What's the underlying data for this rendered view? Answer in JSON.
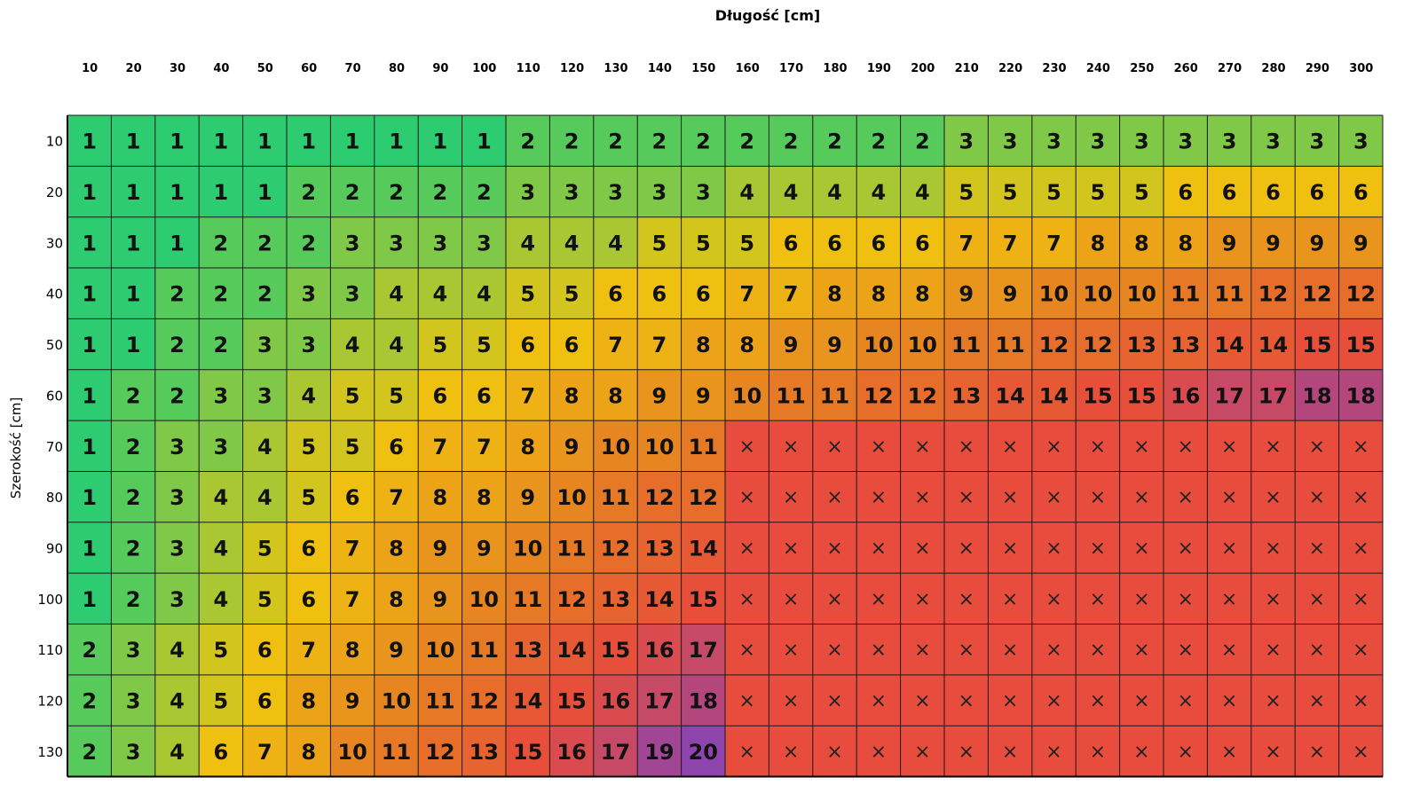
{
  "chart_data": {
    "type": "heatmap",
    "xlabel": "Długość [cm]",
    "ylabel": "Szerokość [cm]",
    "x": [
      "10",
      "20",
      "30",
      "40",
      "50",
      "60",
      "70",
      "80",
      "90",
      "100",
      "110",
      "120",
      "130",
      "140",
      "150",
      "160",
      "170",
      "180",
      "190",
      "200",
      "210",
      "220",
      "230",
      "240",
      "250",
      "260",
      "270",
      "280",
      "290",
      "300"
    ],
    "y": [
      "10",
      "20",
      "30",
      "40",
      "50",
      "60",
      "70",
      "80",
      "90",
      "100",
      "110",
      "120",
      "130"
    ],
    "unavailable_symbol": "×",
    "values": [
      [
        1,
        1,
        1,
        1,
        1,
        1,
        1,
        1,
        1,
        1,
        2,
        2,
        2,
        2,
        2,
        2,
        2,
        2,
        2,
        2,
        3,
        3,
        3,
        3,
        3,
        3,
        3,
        3,
        3,
        3
      ],
      [
        1,
        1,
        1,
        1,
        1,
        2,
        2,
        2,
        2,
        2,
        3,
        3,
        3,
        3,
        3,
        4,
        4,
        4,
        4,
        4,
        5,
        5,
        5,
        5,
        5,
        6,
        6,
        6,
        6,
        6
      ],
      [
        1,
        1,
        1,
        2,
        2,
        2,
        3,
        3,
        3,
        3,
        4,
        4,
        4,
        5,
        5,
        5,
        6,
        6,
        6,
        6,
        7,
        7,
        7,
        8,
        8,
        8,
        9,
        9,
        9,
        9
      ],
      [
        1,
        1,
        2,
        2,
        2,
        3,
        3,
        4,
        4,
        4,
        5,
        5,
        6,
        6,
        6,
        7,
        7,
        8,
        8,
        8,
        9,
        9,
        10,
        10,
        10,
        11,
        11,
        12,
        12,
        12
      ],
      [
        1,
        1,
        2,
        2,
        3,
        3,
        4,
        4,
        5,
        5,
        6,
        6,
        7,
        7,
        8,
        8,
        9,
        9,
        10,
        10,
        11,
        11,
        12,
        12,
        13,
        13,
        14,
        14,
        15,
        15
      ],
      [
        1,
        2,
        2,
        3,
        3,
        4,
        5,
        5,
        6,
        6,
        7,
        8,
        8,
        9,
        9,
        10,
        11,
        11,
        12,
        12,
        13,
        14,
        14,
        15,
        15,
        16,
        17,
        17,
        18,
        18
      ],
      [
        1,
        2,
        3,
        3,
        4,
        5,
        5,
        6,
        7,
        7,
        8,
        9,
        10,
        10,
        11,
        null,
        null,
        null,
        null,
        null,
        null,
        null,
        null,
        null,
        null,
        null,
        null,
        null,
        null,
        null
      ],
      [
        1,
        2,
        3,
        4,
        4,
        5,
        6,
        7,
        8,
        8,
        9,
        10,
        11,
        12,
        12,
        null,
        null,
        null,
        null,
        null,
        null,
        null,
        null,
        null,
        null,
        null,
        null,
        null,
        null,
        null
      ],
      [
        1,
        2,
        3,
        4,
        5,
        6,
        7,
        8,
        9,
        9,
        10,
        11,
        12,
        13,
        14,
        null,
        null,
        null,
        null,
        null,
        null,
        null,
        null,
        null,
        null,
        null,
        null,
        null,
        null,
        null
      ],
      [
        1,
        2,
        3,
        4,
        5,
        6,
        7,
        8,
        9,
        10,
        11,
        12,
        13,
        14,
        15,
        null,
        null,
        null,
        null,
        null,
        null,
        null,
        null,
        null,
        null,
        null,
        null,
        null,
        null,
        null
      ],
      [
        2,
        3,
        4,
        5,
        6,
        7,
        8,
        9,
        10,
        11,
        13,
        14,
        15,
        16,
        17,
        null,
        null,
        null,
        null,
        null,
        null,
        null,
        null,
        null,
        null,
        null,
        null,
        null,
        null,
        null
      ],
      [
        2,
        3,
        4,
        5,
        6,
        8,
        9,
        10,
        11,
        12,
        14,
        15,
        16,
        17,
        18,
        null,
        null,
        null,
        null,
        null,
        null,
        null,
        null,
        null,
        null,
        null,
        null,
        null,
        null,
        null
      ],
      [
        2,
        3,
        4,
        6,
        7,
        8,
        10,
        11,
        12,
        13,
        15,
        16,
        17,
        19,
        20,
        null,
        null,
        null,
        null,
        null,
        null,
        null,
        null,
        null,
        null,
        null,
        null,
        null,
        null,
        null
      ]
    ],
    "colormap": [
      "#2ecc71",
      "#f1c40f",
      "#e67e22",
      "#e74c3c",
      "#8e44ad"
    ],
    "unavailable_color": "#e74c3c",
    "x_ticks_position": "top",
    "grid": true
  }
}
